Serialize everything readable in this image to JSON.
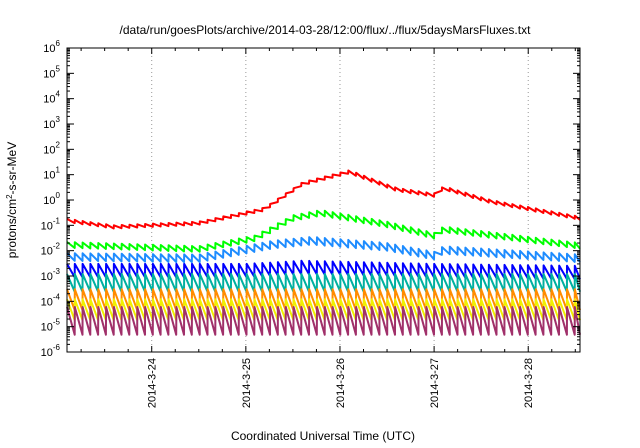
{
  "chart_data": {
    "type": "line",
    "title": "/data/run/goesPlots/archive/2014-03-28/12:00/flux/../flux/5daysMarsFluxes.txt",
    "xlabel": "Coordinated Universal Time (UTC)",
    "ylabel": "protons/cm2-s-sr-MeV",
    "y_scale": "log",
    "ylim": [
      1e-06,
      1000000.0
    ],
    "y_ticks": [
      {
        "base": "10",
        "exp": "-6"
      },
      {
        "base": "10",
        "exp": "-5"
      },
      {
        "base": "10",
        "exp": "-4"
      },
      {
        "base": "10",
        "exp": "-3"
      },
      {
        "base": "10",
        "exp": "-2"
      },
      {
        "base": "10",
        "exp": "-1"
      },
      {
        "base": "10",
        "exp": "0"
      },
      {
        "base": "10",
        "exp": "1"
      },
      {
        "base": "10",
        "exp": "2"
      },
      {
        "base": "10",
        "exp": "3"
      },
      {
        "base": "10",
        "exp": "4"
      },
      {
        "base": "10",
        "exp": "5"
      },
      {
        "base": "10",
        "exp": "6"
      }
    ],
    "x_range_days": [
      23.1,
      28.55
    ],
    "x_ticks": [
      {
        "label": "2014-3-24",
        "day": 24
      },
      {
        "label": "2014-3-25",
        "day": 25
      },
      {
        "label": "2014-3-26",
        "day": 26
      },
      {
        "label": "2014-3-27",
        "day": 27
      },
      {
        "label": "2014-3-28",
        "day": 28
      }
    ],
    "grid": "vertical dotted at day ticks",
    "series": [
      {
        "color": "#ff0000",
        "period_days": 0.083,
        "envelope": [
          [
            23.1,
            0.18
          ],
          [
            23.6,
            0.1
          ],
          [
            24.5,
            0.14
          ],
          [
            25.2,
            0.5
          ],
          [
            25.6,
            5
          ],
          [
            26.1,
            15
          ],
          [
            26.6,
            3
          ],
          [
            27.0,
            1.8
          ],
          [
            27.1,
            3.5
          ],
          [
            27.6,
            1.0
          ],
          [
            28.55,
            0.22
          ]
        ],
        "dip_factor": 0.75
      },
      {
        "color": "#00ff00",
        "period_days": 0.083,
        "envelope": [
          [
            23.1,
            0.022
          ],
          [
            24.5,
            0.015
          ],
          [
            25.1,
            0.04
          ],
          [
            25.5,
            0.25
          ],
          [
            25.8,
            0.4
          ],
          [
            26.5,
            0.14
          ],
          [
            27.0,
            0.05
          ],
          [
            27.1,
            0.09
          ],
          [
            28.55,
            0.02
          ]
        ],
        "dip_factor": 0.6
      },
      {
        "color": "#1e8cff",
        "period_days": 0.083,
        "envelope": [
          [
            23.1,
            0.008
          ],
          [
            24.5,
            0.007
          ],
          [
            25.3,
            0.025
          ],
          [
            25.7,
            0.035
          ],
          [
            26.5,
            0.02
          ],
          [
            27.0,
            0.009
          ],
          [
            27.1,
            0.015
          ],
          [
            28.55,
            0.007
          ]
        ],
        "dip_factor": 0.5
      },
      {
        "color": "#0000ff",
        "period_days": 0.083,
        "envelope": [
          [
            23.1,
            0.003
          ],
          [
            25.0,
            0.003
          ],
          [
            25.6,
            0.004
          ],
          [
            27.0,
            0.003
          ],
          [
            28.55,
            0.0025
          ]
        ],
        "dip_factor": 0.3
      },
      {
        "color": "#00b0a0",
        "period_days": 0.083,
        "envelope": [
          [
            23.1,
            0.0012
          ],
          [
            28.55,
            0.0012
          ]
        ],
        "dip_factor": 0.2
      },
      {
        "color": "#ff8c00",
        "period_days": 0.083,
        "envelope": [
          [
            23.1,
            0.0003
          ],
          [
            28.55,
            0.0003
          ]
        ],
        "dip_factor": 0.15
      },
      {
        "color": "#f0f000",
        "period_days": 0.083,
        "envelope": [
          [
            23.1,
            0.00012
          ],
          [
            28.55,
            0.00012
          ]
        ],
        "dip_factor": 0.15
      },
      {
        "color": "#a0306a",
        "period_days": 0.083,
        "envelope": [
          [
            23.1,
            6e-05
          ],
          [
            28.55,
            6e-05
          ]
        ],
        "dip_factor": 0.08
      }
    ]
  }
}
